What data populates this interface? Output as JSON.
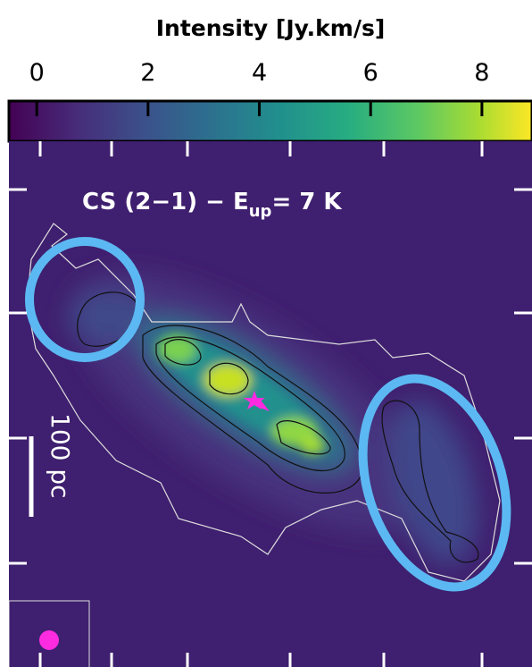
{
  "chart_data": {
    "type": "intensity-map",
    "colorbar_label": "Intensity [Jy.km/s]",
    "clim": [
      -0.5,
      8.9
    ],
    "ticks": [
      0,
      2,
      4,
      6,
      8
    ],
    "annotation": [
      "CS (2−1) − E",
      "up",
      "= 7 K"
    ],
    "scale_bar": "100 pc"
  }
}
